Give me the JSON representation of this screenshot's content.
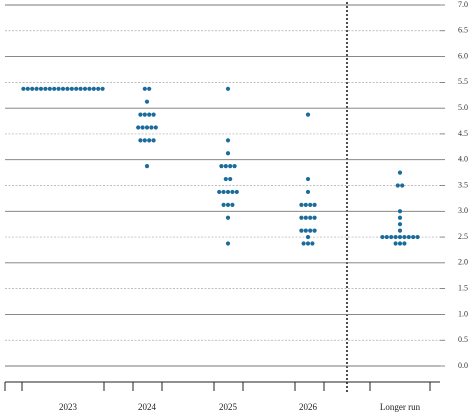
{
  "chart_data": {
    "type": "dot",
    "categories": [
      "2023",
      "2024",
      "2025",
      "2026",
      "Longer run"
    ],
    "dots": [
      {
        "levels": [
          5.375
        ],
        "counts": [
          19
        ]
      },
      {
        "levels": [
          5.375,
          5.125,
          4.875,
          4.625,
          4.375,
          3.875
        ],
        "counts": [
          2,
          1,
          4,
          5,
          4,
          1
        ]
      },
      {
        "levels": [
          5.375,
          4.375,
          4.125,
          3.875,
          3.625,
          3.375,
          3.125,
          2.875,
          2.375
        ],
        "counts": [
          1,
          1,
          1,
          4,
          2,
          5,
          3,
          1,
          1
        ]
      },
      {
        "levels": [
          4.875,
          3.625,
          3.375,
          3.125,
          2.875,
          2.625,
          2.5,
          2.375
        ],
        "counts": [
          1,
          1,
          1,
          4,
          4,
          4,
          1,
          3
        ]
      },
      {
        "levels": [
          3.75,
          3.5,
          3.0,
          2.875,
          2.75,
          2.625,
          2.5,
          2.375
        ],
        "counts": [
          1,
          2,
          1,
          1,
          1,
          1,
          9,
          3
        ]
      }
    ],
    "color": "#1b6c9c",
    "ylim": [
      0,
      7
    ],
    "yticks": [
      {
        "value": 0,
        "label": "0.0"
      },
      {
        "value": 0.5,
        "label": "0.5"
      },
      {
        "value": 1,
        "label": "1.0"
      },
      {
        "value": 1.5,
        "label": "1.5"
      },
      {
        "value": 2,
        "label": "2.0"
      },
      {
        "value": 2.5,
        "label": "2.5"
      },
      {
        "value": 3,
        "label": "3.0"
      },
      {
        "value": 3.5,
        "label": "3.5"
      },
      {
        "value": 4,
        "label": "4.0"
      },
      {
        "value": 4.5,
        "label": "4.5"
      },
      {
        "value": 5,
        "label": "5.0"
      },
      {
        "value": 5.5,
        "label": "5.5"
      },
      {
        "value": 6,
        "label": "6.0"
      },
      {
        "value": 6.5,
        "label": "6.5"
      },
      {
        "value": 7,
        "label": "7.0"
      }
    ],
    "grid": true
  }
}
